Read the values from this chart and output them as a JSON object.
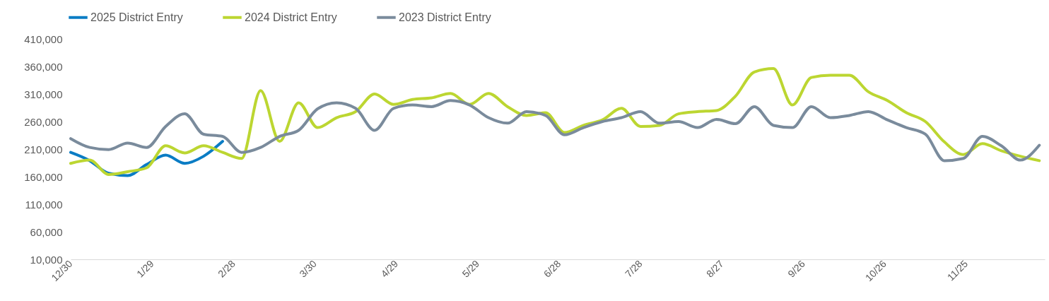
{
  "chart_data": {
    "type": "line",
    "legend": "top left",
    "x": [
      "2024-12-30",
      "2025-01-06",
      "2025-01-13",
      "2025-01-20",
      "2025-01-27",
      "2025-02-03",
      "2025-02-10",
      "2025-02-17",
      "2025-02-24",
      "2025-03-03",
      "2025-03-10",
      "2025-03-17",
      "2025-03-24",
      "2025-03-31",
      "2025-04-07",
      "2025-04-14",
      "2025-04-21",
      "2025-04-28",
      "2025-05-05",
      "2025-05-12",
      "2025-05-19",
      "2025-05-26",
      "2025-06-02",
      "2025-06-09",
      "2025-06-16",
      "2025-06-23",
      "2025-06-30",
      "2025-07-07",
      "2025-07-14",
      "2025-07-21",
      "2025-07-28",
      "2025-08-04",
      "2025-08-11",
      "2025-08-18",
      "2025-08-25",
      "2025-09-01",
      "2025-09-08",
      "2025-09-15",
      "2025-09-22",
      "2025-09-29",
      "2025-10-06",
      "2025-10-13",
      "2025-10-20",
      "2025-10-27",
      "2025-11-03",
      "2025-11-10",
      "2025-11-17",
      "2025-11-24",
      "2025-12-01",
      "2025-12-08",
      "2025-12-15",
      "2025-12-22"
    ],
    "xlim": [
      "2024-12-30",
      "2025-12-24"
    ],
    "xticks": [
      {
        "value": "2024-12-30",
        "label": "12/30"
      },
      {
        "value": "2025-01-29",
        "label": "1/29"
      },
      {
        "value": "2025-02-28",
        "label": "2/28"
      },
      {
        "value": "2025-03-30",
        "label": "3/30"
      },
      {
        "value": "2025-04-29",
        "label": "4/29"
      },
      {
        "value": "2025-05-29",
        "label": "5/29"
      },
      {
        "value": "2025-06-28",
        "label": "6/28"
      },
      {
        "value": "2025-07-28",
        "label": "7/28"
      },
      {
        "value": "2025-08-27",
        "label": "8/27"
      },
      {
        "value": "2025-09-26",
        "label": "9/26"
      },
      {
        "value": "2025-10-26",
        "label": "10/26"
      },
      {
        "value": "2025-11-25",
        "label": "11/25"
      }
    ],
    "ylim": [
      10000,
      410000
    ],
    "yticks": [
      {
        "value": 10000,
        "label": "10,000"
      },
      {
        "value": 60000,
        "label": "60,000"
      },
      {
        "value": 110000,
        "label": "110,000"
      },
      {
        "value": 160000,
        "label": "160,000"
      },
      {
        "value": 210000,
        "label": "210,000"
      },
      {
        "value": 260000,
        "label": "260,000"
      },
      {
        "value": 310000,
        "label": "310,000"
      },
      {
        "value": 360000,
        "label": "360,000"
      },
      {
        "value": 410000,
        "label": "410,000"
      }
    ],
    "series": [
      {
        "name": "2025 District Entry",
        "color": "#0a7cc4",
        "values": [
          204000,
          189000,
          166000,
          162000,
          182000,
          199000,
          184000,
          197000,
          224000,
          null,
          null,
          null,
          null,
          null,
          null,
          null,
          null,
          null,
          null,
          null,
          null,
          null,
          null,
          null,
          null,
          null,
          null,
          null,
          null,
          null,
          null,
          null,
          null,
          null,
          null,
          null,
          null,
          null,
          null,
          null,
          null,
          null,
          null,
          null,
          null,
          null,
          null,
          null,
          null,
          null,
          null,
          null
        ]
      },
      {
        "name": "2024 District Entry",
        "color": "#bcd631",
        "values": [
          184000,
          190000,
          164000,
          169000,
          176000,
          216000,
          203000,
          216000,
          204000,
          193000,
          316000,
          224000,
          294000,
          249000,
          267000,
          278000,
          310000,
          291000,
          300000,
          303000,
          311000,
          291000,
          311000,
          287000,
          271000,
          276000,
          240000,
          253000,
          263000,
          284000,
          251000,
          253000,
          274000,
          278000,
          280000,
          306000,
          350000,
          356000,
          290000,
          340000,
          344000,
          344000,
          314000,
          298000,
          276000,
          260000,
          223000,
          200000,
          220000,
          207000,
          197000,
          189000
        ]
      },
      {
        "name": "2023 District Entry",
        "color": "#7a8b9c",
        "values": [
          229000,
          213000,
          209000,
          221000,
          213000,
          251000,
          274000,
          237000,
          233000,
          204000,
          213000,
          233000,
          244000,
          283000,
          294000,
          284000,
          244000,
          284000,
          290000,
          287000,
          298000,
          290000,
          267000,
          257000,
          278000,
          271000,
          236000,
          249000,
          260000,
          267000,
          278000,
          257000,
          260000,
          249000,
          264000,
          256000,
          287000,
          253000,
          249000,
          287000,
          267000,
          271000,
          278000,
          263000,
          249000,
          237000,
          189000,
          193000,
          233000,
          216000,
          190000,
          217000
        ]
      }
    ]
  }
}
